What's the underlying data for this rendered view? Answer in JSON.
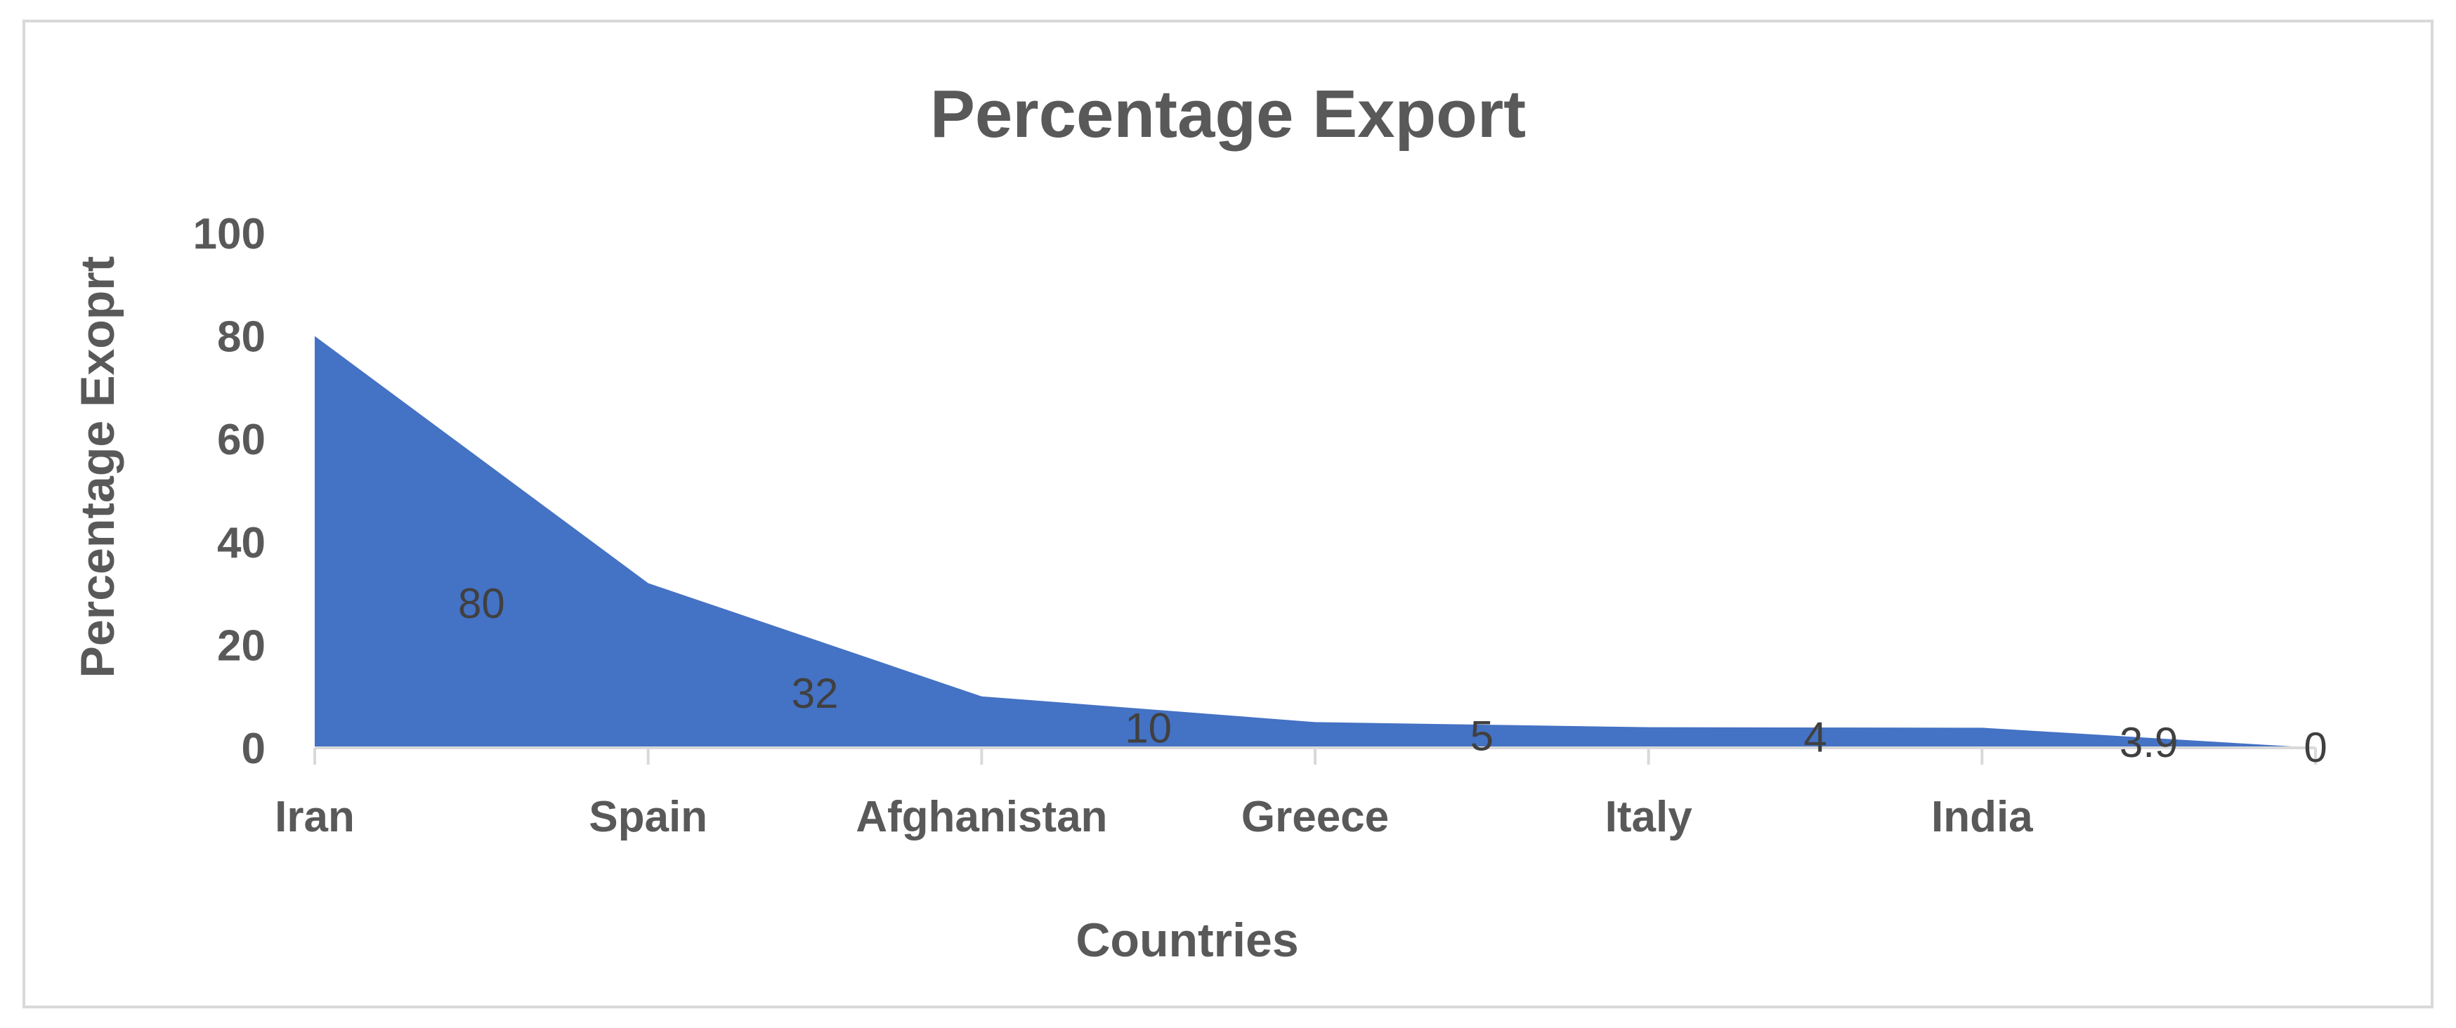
{
  "chart_data": {
    "type": "area",
    "title": "Percentage Export",
    "xlabel": "Countries",
    "ylabel": "Percentage Exoprt",
    "categories": [
      "Iran",
      "Spain",
      "Afghanistan",
      "Greece",
      "Italy",
      "India",
      ""
    ],
    "values": [
      80,
      32,
      10,
      5,
      4,
      3.9,
      0
    ],
    "data_labels": [
      "80",
      "32",
      "10",
      "5",
      "4",
      "3.9",
      "0"
    ],
    "ylim": [
      0,
      100
    ],
    "yticks": [
      "0",
      "20",
      "40",
      "60",
      "80",
      "100"
    ],
    "grid": false,
    "legend": "none",
    "series_color": "#4472c4",
    "text_color": "#595959",
    "axis_color": "#d9d9d9"
  }
}
